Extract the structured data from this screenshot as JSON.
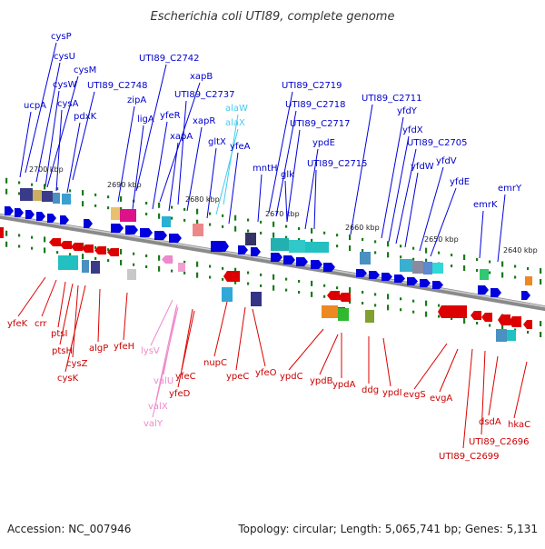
{
  "title": "Escherichia coli UTI89, complete genome",
  "footer": {
    "accession": "Accession: NC_007946",
    "topology": "Topology: circular; Length: 5,065,741 bp; Genes: 5,131"
  },
  "colors": {
    "forward": "#0000dd",
    "reverse": "#dd0000",
    "rna": "#44ccee",
    "trna_rev": "#ee88cc",
    "backbone": "#8a8a8a",
    "tick": "#1a7a1a"
  },
  "scale_ticks": [
    "2700 kbp",
    "2690 kbp",
    "2680 kbp",
    "2670 kbp",
    "2660 kbp",
    "2650 kbp",
    "2640 kbp"
  ],
  "top_labels": [
    "cysP",
    "cysU",
    "cysM",
    "cysW",
    "cysA",
    "ucpA",
    "pdxK",
    "UTI89_C2748",
    "zipA",
    "ligA",
    "UTI89_C2742",
    "xapB",
    "UTI89_C2737",
    "yfeR",
    "xapR",
    "xapA",
    "gltX",
    "alaW",
    "alaX",
    "yfeA",
    "mntH",
    "UTI89_C2719",
    "UTI89_C2718",
    "UTI89_C2717",
    "ypdE",
    "glk",
    "UTI89_C2715",
    "UTI89_C2711",
    "yfdY",
    "yfdX",
    "UTI89_C2705",
    "yfdW",
    "yfdV",
    "yfdE",
    "emrY",
    "emrK"
  ],
  "bottom_labels": [
    "yfeK",
    "crr",
    "ptsI",
    "ptsH",
    "cysZ",
    "cysK",
    "algP",
    "yfeH",
    "lysV",
    "valU",
    "valX",
    "valY",
    "yfeC",
    "yfeD",
    "nupC",
    "ypeC",
    "yfeO",
    "ypdC",
    "ypdB",
    "ypdA",
    "ddg",
    "ypdI",
    "evgS",
    "evgA",
    "dsdA",
    "UTI89_C2699",
    "UTI89_C2696",
    "hkaC"
  ]
}
